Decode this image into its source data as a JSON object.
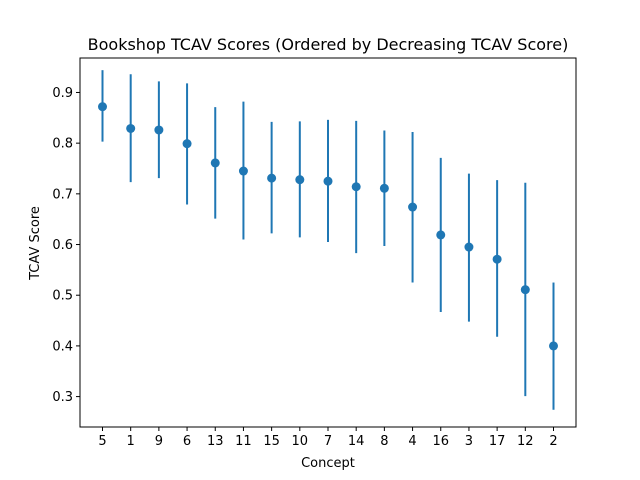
{
  "chart_data": {
    "type": "scatter",
    "title": "Bookshop TCAV Scores (Ordered by Decreasing TCAV Score)",
    "xlabel": "Concept",
    "ylabel": "TCAV Score",
    "categories": [
      "5",
      "1",
      "9",
      "6",
      "13",
      "11",
      "15",
      "10",
      "7",
      "14",
      "8",
      "4",
      "16",
      "3",
      "17",
      "12",
      "2"
    ],
    "values": [
      0.872,
      0.829,
      0.826,
      0.799,
      0.761,
      0.745,
      0.731,
      0.728,
      0.725,
      0.714,
      0.711,
      0.674,
      0.619,
      0.595,
      0.571,
      0.511,
      0.4
    ],
    "error_low": [
      0.803,
      0.723,
      0.731,
      0.679,
      0.651,
      0.61,
      0.622,
      0.614,
      0.605,
      0.583,
      0.597,
      0.525,
      0.467,
      0.448,
      0.418,
      0.301,
      0.274
    ],
    "error_high": [
      0.944,
      0.936,
      0.922,
      0.918,
      0.871,
      0.882,
      0.842,
      0.843,
      0.846,
      0.844,
      0.825,
      0.822,
      0.771,
      0.74,
      0.727,
      0.722,
      0.525
    ],
    "yticks": [
      "0.3",
      "0.4",
      "0.5",
      "0.6",
      "0.7",
      "0.8",
      "0.9"
    ],
    "ylim": [
      0.24,
      0.968
    ],
    "grid": false,
    "color": "#1f77b4"
  }
}
